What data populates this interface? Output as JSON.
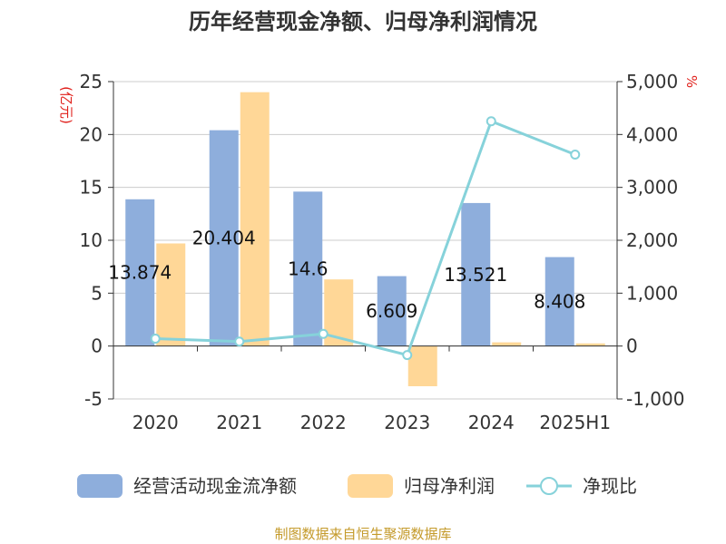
{
  "chart_data": {
    "type": "bar",
    "title": "历年经营现金净额、归母净利润情况",
    "categories": [
      "2020",
      "2021",
      "2022",
      "2023",
      "2024",
      "2025H1"
    ],
    "y_left": {
      "unit": "(亿元)",
      "min": -5,
      "max": 25,
      "ticks": [
        "25",
        "20",
        "15",
        "10",
        "5",
        "0",
        "-5"
      ]
    },
    "y_right": {
      "unit": "%",
      "min": -1000,
      "max": 5000,
      "ticks": [
        "5,000",
        "4,000",
        "3,000",
        "2,000",
        "1,000",
        "0",
        "-1,000"
      ]
    },
    "series": [
      {
        "name": "经营活动现金流净额",
        "type": "bar",
        "axis": "left",
        "color": "#8eaedc",
        "values": [
          13.874,
          20.404,
          14.6,
          6.609,
          13.521,
          8.408
        ],
        "labels": [
          "13.874",
          "20.404",
          "14.6",
          "6.609",
          "13.521",
          "8.408"
        ]
      },
      {
        "name": "归母净利润",
        "type": "bar",
        "axis": "left",
        "color": "#ffd797",
        "values": [
          9.7,
          24.0,
          6.3,
          -3.8,
          0.35,
          0.25
        ]
      },
      {
        "name": "净现比",
        "type": "line",
        "axis": "right",
        "color": "#86d2da",
        "values": [
          140,
          85,
          230,
          -170,
          4250,
          3620
        ]
      }
    ],
    "grid": true,
    "legend": "bottom"
  },
  "source": "制图数据来自恒生聚源数据库"
}
